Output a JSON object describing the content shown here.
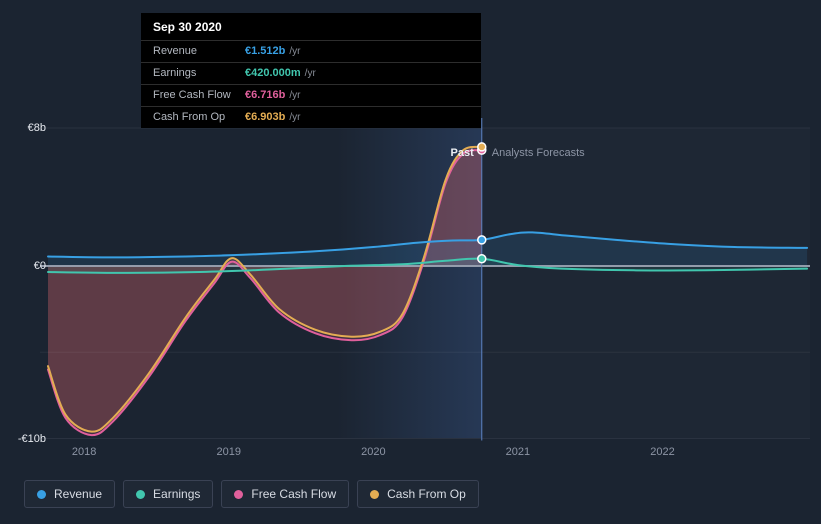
{
  "tooltip": {
    "date": "Sep 30 2020",
    "rows": [
      {
        "label": "Revenue",
        "value": "€1.512b",
        "unit": "/yr",
        "color": "#38a0e4"
      },
      {
        "label": "Earnings",
        "value": "€420.000m",
        "unit": "/yr",
        "color": "#41c6ae"
      },
      {
        "label": "Free Cash Flow",
        "value": "€6.716b",
        "unit": "/yr",
        "color": "#e0609c"
      },
      {
        "label": "Cash From Op",
        "value": "€6.903b",
        "unit": "/yr",
        "color": "#e4ad53"
      }
    ]
  },
  "legend": [
    {
      "label": "Revenue",
      "color": "#38a0e4"
    },
    {
      "label": "Earnings",
      "color": "#41c6ae"
    },
    {
      "label": "Free Cash Flow",
      "color": "#e0609c"
    },
    {
      "label": "Cash From Op",
      "color": "#e4ad53"
    }
  ],
  "chart_data": {
    "type": "line",
    "title": "",
    "xlim": [
      2017.75,
      2023.02
    ],
    "ylim": [
      -10,
      8
    ],
    "divider_x": 2020.75,
    "past_label": "Past",
    "forecast_label": "Analysts Forecasts",
    "x_tick_positions": [
      2018,
      2019,
      2020,
      2021,
      2022
    ],
    "x_tick_labels": [
      "2018",
      "2019",
      "2020",
      "2021",
      "2022"
    ],
    "y_tick_values": [
      8,
      0,
      -10
    ],
    "y_tick_labels": [
      "€8b",
      "€0",
      "-€10b"
    ],
    "grid_minor_values": [
      -5
    ],
    "series": [
      {
        "name": "Free Cash Flow",
        "color": "#e0609c",
        "fill": "rgba(214,86,140,0.20)",
        "divider_value": 6.716,
        "x": [
          2017.75,
          2017.87,
          2018.05,
          2018.2,
          2018.45,
          2018.7,
          2018.9,
          2019.02,
          2019.15,
          2019.35,
          2019.6,
          2019.85,
          2020.05,
          2020.2,
          2020.35,
          2020.5,
          2020.62,
          2020.75
        ],
        "y": [
          -6.0,
          -8.8,
          -9.8,
          -9.0,
          -6.4,
          -3.2,
          -1.0,
          0.25,
          -0.7,
          -2.7,
          -3.9,
          -4.3,
          -4.0,
          -3.0,
          0.3,
          4.8,
          6.5,
          6.716
        ]
      },
      {
        "name": "Cash From Op",
        "color": "#e4ad53",
        "fill": "rgba(200,110,80,0.22)",
        "divider_value": 6.903,
        "x": [
          2017.75,
          2017.87,
          2018.05,
          2018.2,
          2018.45,
          2018.7,
          2018.9,
          2019.02,
          2019.15,
          2019.35,
          2019.6,
          2019.85,
          2020.05,
          2020.2,
          2020.35,
          2020.5,
          2020.62,
          2020.75
        ],
        "y": [
          -5.8,
          -8.6,
          -9.6,
          -8.8,
          -6.2,
          -3.0,
          -0.8,
          0.45,
          -0.5,
          -2.5,
          -3.7,
          -4.1,
          -3.8,
          -2.8,
          0.5,
          5.0,
          6.7,
          6.903
        ]
      },
      {
        "name": "Revenue",
        "color": "#38a0e4",
        "fill": "rgba(56,160,228,0.13)",
        "divider_value": 1.512,
        "x": [
          2017.75,
          2018.2,
          2018.7,
          2019.1,
          2019.6,
          2020.0,
          2020.3,
          2020.55,
          2020.75,
          2020.95,
          2021.1,
          2021.35,
          2021.7,
          2022.1,
          2022.5,
          2023.0
        ],
        "y": [
          0.55,
          0.5,
          0.55,
          0.65,
          0.85,
          1.1,
          1.35,
          1.48,
          1.512,
          1.85,
          1.95,
          1.75,
          1.5,
          1.25,
          1.1,
          1.05
        ]
      },
      {
        "name": "Earnings",
        "color": "#41c6ae",
        "fill": "rgba(65,198,174,0.10)",
        "divider_value": 0.42,
        "x": [
          2017.75,
          2018.3,
          2018.8,
          2019.3,
          2019.8,
          2020.2,
          2020.5,
          2020.75,
          2021.0,
          2021.3,
          2021.8,
          2022.3,
          2023.0
        ],
        "y": [
          -0.35,
          -0.4,
          -0.35,
          -0.2,
          0.0,
          0.1,
          0.3,
          0.42,
          0.05,
          -0.15,
          -0.25,
          -0.25,
          -0.15
        ]
      }
    ]
  }
}
